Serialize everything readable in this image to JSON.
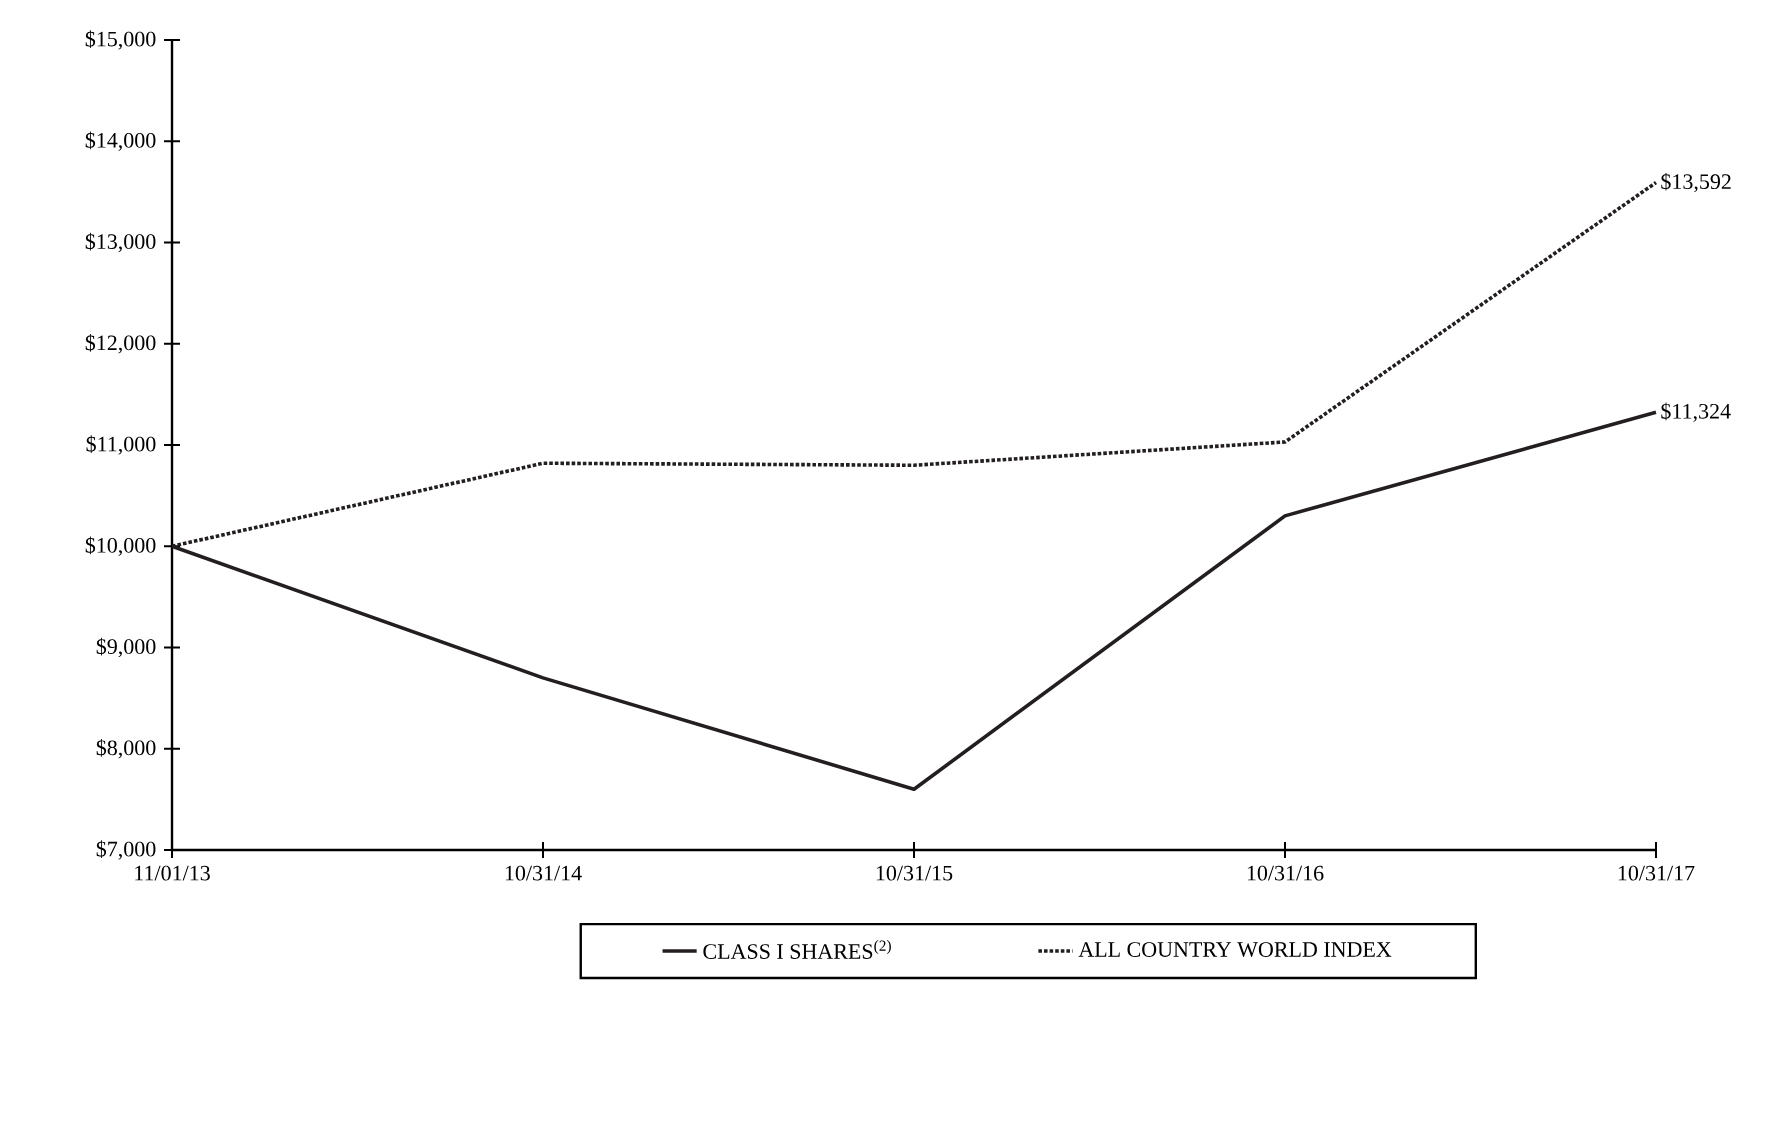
{
  "chart_data": {
    "type": "line",
    "categories": [
      "11/01/13",
      "10/31/14",
      "10/31/15",
      "10/31/16",
      "10/31/17"
    ],
    "series": [
      {
        "name": "CLASS I SHARES$^{(2)}$",
        "color": "#231f20",
        "line_style": "solid",
        "values": [
          10000,
          8700,
          7600,
          10300,
          11324
        ],
        "value_labels": [
          null,
          null,
          null,
          null,
          "$11,324"
        ]
      },
      {
        "name": "ALL COUNTRY WORLD INDEX",
        "color": "#231f20",
        "line_style": "dotted",
        "values": [
          10000,
          10820,
          10800,
          11030,
          13592
        ],
        "value_labels": [
          null,
          null,
          null,
          null,
          "$13,592"
        ]
      }
    ],
    "ylim": [
      7000,
      15000
    ],
    "yticks": [
      {
        "value": 7000,
        "label": "$7,000"
      },
      {
        "value": 8000,
        "label": "$8,000"
      },
      {
        "value": 9000,
        "label": "$9,000"
      },
      {
        "value": 10000,
        "label": "$10,000"
      },
      {
        "value": 11000,
        "label": "$11,000"
      },
      {
        "value": 12000,
        "label": "$12,000"
      },
      {
        "value": 13000,
        "label": "$13,000"
      },
      {
        "value": 14000,
        "label": "$14,000"
      },
      {
        "value": 15000,
        "label": "$15,000"
      }
    ],
    "legend": "bottom"
  }
}
